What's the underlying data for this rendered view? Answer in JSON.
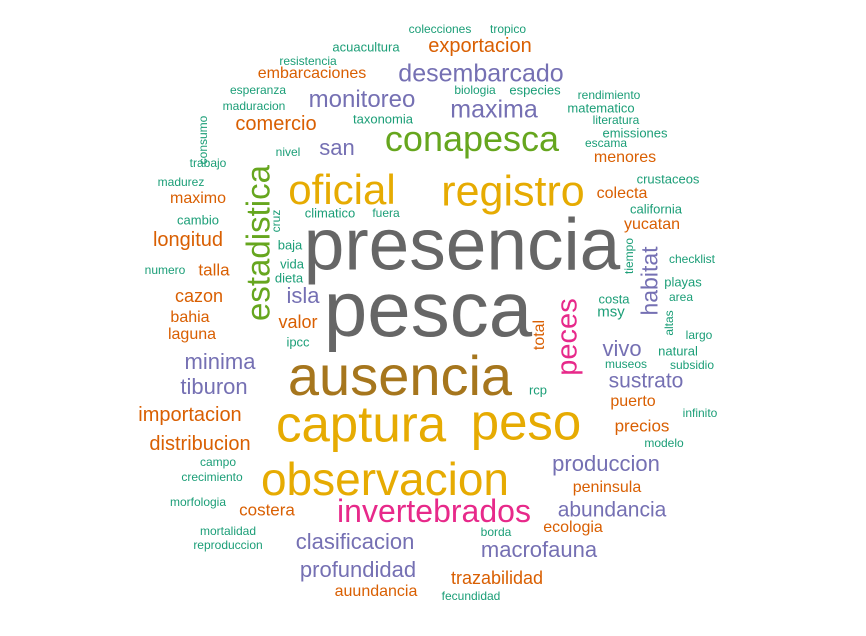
{
  "palette": {
    "gray": "#666666",
    "brown": "#a6761d",
    "gold": "#e6ab02",
    "green": "#66a61e",
    "purple": "#7570b3",
    "orange": "#d95f02",
    "magenta": "#e7298a",
    "teal": "#1b9e77"
  },
  "words": [
    {
      "text": "presencia",
      "color": "gray"
    },
    {
      "text": "pesca",
      "color": "gray"
    },
    {
      "text": "ausencia",
      "color": "brown"
    },
    {
      "text": "captura",
      "color": "gold"
    },
    {
      "text": "peso",
      "color": "gold"
    },
    {
      "text": "observacion",
      "color": "gold"
    },
    {
      "text": "registro",
      "color": "gold"
    },
    {
      "text": "oficial",
      "color": "gold"
    },
    {
      "text": "conapesca",
      "color": "green"
    },
    {
      "text": "estadistica",
      "color": "green"
    },
    {
      "text": "invertebrados",
      "color": "magenta"
    },
    {
      "text": "peces",
      "color": "magenta"
    },
    {
      "text": "desembarcado",
      "color": "purple"
    },
    {
      "text": "maxima",
      "color": "purple"
    },
    {
      "text": "monitoreo",
      "color": "purple"
    },
    {
      "text": "san",
      "color": "purple"
    },
    {
      "text": "habitat",
      "color": "purple"
    },
    {
      "text": "isla",
      "color": "purple"
    },
    {
      "text": "vivo",
      "color": "purple"
    },
    {
      "text": "minima",
      "color": "purple"
    },
    {
      "text": "tiburon",
      "color": "purple"
    },
    {
      "text": "sustrato",
      "color": "purple"
    },
    {
      "text": "produccion",
      "color": "purple"
    },
    {
      "text": "abundancia",
      "color": "purple"
    },
    {
      "text": "clasificacion",
      "color": "purple"
    },
    {
      "text": "macrofauna",
      "color": "purple"
    },
    {
      "text": "profundidad",
      "color": "purple"
    },
    {
      "text": "exportacion",
      "color": "orange"
    },
    {
      "text": "embarcaciones",
      "color": "orange"
    },
    {
      "text": "comercio",
      "color": "orange"
    },
    {
      "text": "menores",
      "color": "orange"
    },
    {
      "text": "colecta",
      "color": "orange"
    },
    {
      "text": "maximo",
      "color": "orange"
    },
    {
      "text": "yucatan",
      "color": "orange"
    },
    {
      "text": "longitud",
      "color": "orange"
    },
    {
      "text": "talla",
      "color": "orange"
    },
    {
      "text": "cazon",
      "color": "orange"
    },
    {
      "text": "bahia",
      "color": "orange"
    },
    {
      "text": "valor",
      "color": "orange"
    },
    {
      "text": "laguna",
      "color": "orange"
    },
    {
      "text": "total",
      "color": "orange"
    },
    {
      "text": "puerto",
      "color": "orange"
    },
    {
      "text": "importacion",
      "color": "orange"
    },
    {
      "text": "precios",
      "color": "orange"
    },
    {
      "text": "distribucion",
      "color": "orange"
    },
    {
      "text": "peninsula",
      "color": "orange"
    },
    {
      "text": "costera",
      "color": "orange"
    },
    {
      "text": "ecologia",
      "color": "orange"
    },
    {
      "text": "trazabilidad",
      "color": "orange"
    },
    {
      "text": "auundancia",
      "color": "orange"
    },
    {
      "text": "colecciones",
      "color": "teal"
    },
    {
      "text": "tropico",
      "color": "teal"
    },
    {
      "text": "acuacultura",
      "color": "teal"
    },
    {
      "text": "resistencia",
      "color": "teal"
    },
    {
      "text": "esperanza",
      "color": "teal"
    },
    {
      "text": "biologia",
      "color": "teal"
    },
    {
      "text": "especies",
      "color": "teal"
    },
    {
      "text": "rendimiento",
      "color": "teal"
    },
    {
      "text": "maduracion",
      "color": "teal"
    },
    {
      "text": "matematico",
      "color": "teal"
    },
    {
      "text": "consumo",
      "color": "teal"
    },
    {
      "text": "taxonomia",
      "color": "teal"
    },
    {
      "text": "literatura",
      "color": "teal"
    },
    {
      "text": "emissiones",
      "color": "teal"
    },
    {
      "text": "escama",
      "color": "teal"
    },
    {
      "text": "nivel",
      "color": "teal"
    },
    {
      "text": "trabajo",
      "color": "teal"
    },
    {
      "text": "crustaceos",
      "color": "teal"
    },
    {
      "text": "madurez",
      "color": "teal"
    },
    {
      "text": "california",
      "color": "teal"
    },
    {
      "text": "climatico",
      "color": "teal"
    },
    {
      "text": "fuera",
      "color": "teal"
    },
    {
      "text": "cambio",
      "color": "teal"
    },
    {
      "text": "cruz",
      "color": "teal"
    },
    {
      "text": "baja",
      "color": "teal"
    },
    {
      "text": "tiempo",
      "color": "teal"
    },
    {
      "text": "checklist",
      "color": "teal"
    },
    {
      "text": "numero",
      "color": "teal"
    },
    {
      "text": "vida",
      "color": "teal"
    },
    {
      "text": "dieta",
      "color": "teal"
    },
    {
      "text": "playas",
      "color": "teal"
    },
    {
      "text": "costa",
      "color": "teal"
    },
    {
      "text": "area",
      "color": "teal"
    },
    {
      "text": "msy",
      "color": "teal"
    },
    {
      "text": "altas",
      "color": "teal"
    },
    {
      "text": "largo",
      "color": "teal"
    },
    {
      "text": "ipcc",
      "color": "teal"
    },
    {
      "text": "natural",
      "color": "teal"
    },
    {
      "text": "museos",
      "color": "teal"
    },
    {
      "text": "subsidio",
      "color": "teal"
    },
    {
      "text": "rcp",
      "color": "teal"
    },
    {
      "text": "infinito",
      "color": "teal"
    },
    {
      "text": "modelo",
      "color": "teal"
    },
    {
      "text": "campo",
      "color": "teal"
    },
    {
      "text": "crecimiento",
      "color": "teal"
    },
    {
      "text": "morfologia",
      "color": "teal"
    },
    {
      "text": "mortalidad",
      "color": "teal"
    },
    {
      "text": "borda",
      "color": "teal"
    },
    {
      "text": "reproduccion",
      "color": "teal"
    },
    {
      "text": "fecundidad",
      "color": "teal"
    }
  ]
}
